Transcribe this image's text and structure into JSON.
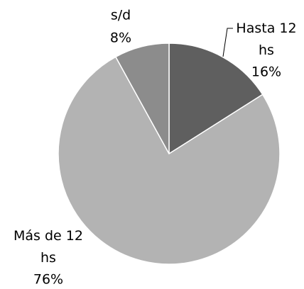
{
  "chart_data": {
    "type": "pie",
    "categories": [
      "Hasta 12 hs",
      "Más de 12 hs",
      "s/d"
    ],
    "values": [
      16,
      76,
      8
    ],
    "value_labels": [
      "16%",
      "76%",
      "8%"
    ],
    "colors": [
      "#5f5f5f",
      "#b3b3b3",
      "#8c8c8c"
    ]
  }
}
